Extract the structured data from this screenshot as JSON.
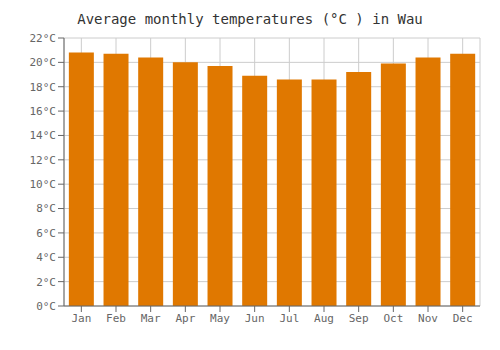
{
  "chart_data": {
    "type": "bar",
    "title": "Average monthly temperatures (°C ) in Wau",
    "categories": [
      "Jan",
      "Feb",
      "Mar",
      "Apr",
      "May",
      "Jun",
      "Jul",
      "Aug",
      "Sep",
      "Oct",
      "Nov",
      "Dec"
    ],
    "values": [
      20.8,
      20.7,
      20.4,
      20.0,
      19.7,
      18.9,
      18.6,
      18.6,
      19.2,
      19.9,
      20.4,
      20.7
    ],
    "color": "#E07800",
    "ylim": [
      0,
      22
    ],
    "yticks": [
      {
        "value": 0,
        "label": "0°C"
      },
      {
        "value": 2,
        "label": "2°C"
      },
      {
        "value": 4,
        "label": "4°C"
      },
      {
        "value": 6,
        "label": "6°C"
      },
      {
        "value": 8,
        "label": "8°C"
      },
      {
        "value": 10,
        "label": "10°C"
      },
      {
        "value": 12,
        "label": "12°C"
      },
      {
        "value": 14,
        "label": "14°C"
      },
      {
        "value": 16,
        "label": "16°C"
      },
      {
        "value": 18,
        "label": "18°C"
      },
      {
        "value": 20,
        "label": "20°C"
      },
      {
        "value": 22,
        "label": "22°C"
      }
    ],
    "grid": true
  }
}
